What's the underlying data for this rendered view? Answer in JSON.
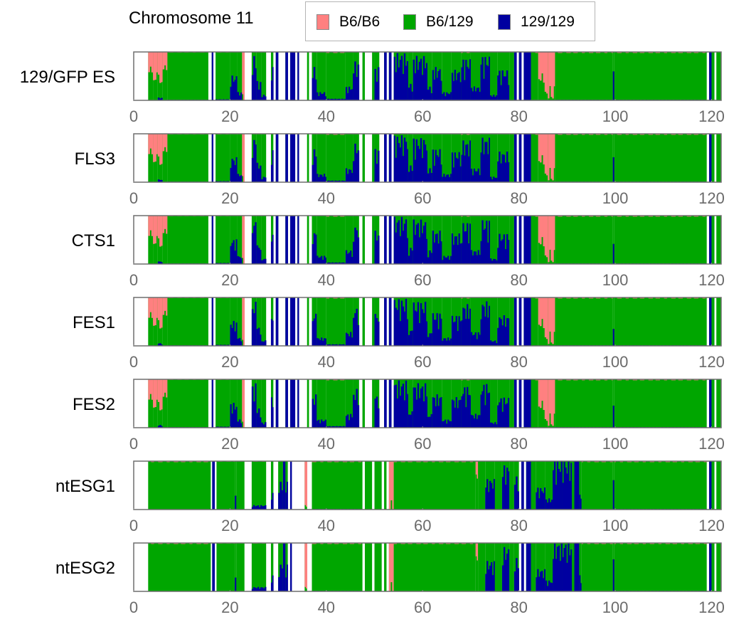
{
  "chart_data": {
    "type": "bar",
    "subtype": "stacked-genotype-frequency-tracks",
    "title": "Chromosome 11",
    "xlabel": "",
    "ylabel": "",
    "xlim": [
      0,
      122
    ],
    "ylim": [
      0,
      1
    ],
    "x_ticks": [
      0,
      20,
      40,
      60,
      80,
      100,
      120
    ],
    "x_tick_labels": [
      "0",
      "20",
      "40",
      "60",
      "80",
      "100",
      "120"
    ],
    "legend": {
      "placement": "top",
      "entries": [
        {
          "label": "B6/B6",
          "color": "#ff8080"
        },
        {
          "label": "B6/129",
          "color": "#00a600"
        },
        {
          "label": "129/129",
          "color": "#0000a0"
        }
      ]
    },
    "samples": [
      "129/GFP ES",
      "FLS3",
      "CTS1",
      "FES1",
      "FES2",
      "ntESG1",
      "ntESG2"
    ],
    "data_start_mb": 3.0,
    "data_end_mb": 122.0,
    "profiles": {
      "es": {
        "description_note": "segments: [start_mb, end_mb, b6b6_frac, b129_frac, gap]",
        "segments": [
          [
            3.0,
            4.0,
            0.4,
            0.0,
            0
          ],
          [
            4.0,
            5.0,
            0.55,
            0.0,
            0
          ],
          [
            5.0,
            6.0,
            0.6,
            0.05,
            0
          ],
          [
            6.0,
            7.0,
            0.35,
            0.0,
            0
          ],
          [
            7.0,
            15.5,
            0.01,
            0.01,
            0
          ],
          [
            15.5,
            16.2,
            0.0,
            0.0,
            1
          ],
          [
            16.2,
            16.5,
            0.0,
            1.0,
            0
          ],
          [
            16.5,
            17.0,
            0.0,
            0.0,
            1
          ],
          [
            17.0,
            20.0,
            0.01,
            0.02,
            0
          ],
          [
            20.0,
            21.5,
            0.0,
            0.45,
            0
          ],
          [
            21.5,
            22.5,
            0.0,
            0.15,
            0
          ],
          [
            22.5,
            23.0,
            1.0,
            0.0,
            0
          ],
          [
            23.0,
            24.5,
            0.0,
            0.0,
            1
          ],
          [
            24.5,
            25.5,
            0.0,
            0.8,
            0
          ],
          [
            25.5,
            26.5,
            0.0,
            0.35,
            0
          ],
          [
            26.5,
            27.5,
            0.0,
            0.1,
            0
          ],
          [
            27.5,
            28.5,
            0.0,
            0.0,
            1
          ],
          [
            28.5,
            29.0,
            0.0,
            0.6,
            0
          ],
          [
            29.0,
            29.5,
            0.0,
            0.0,
            1
          ],
          [
            29.5,
            30.0,
            0.0,
            1.0,
            0
          ],
          [
            30.0,
            31.5,
            0.0,
            0.0,
            1
          ],
          [
            31.5,
            32.0,
            0.0,
            1.0,
            0
          ],
          [
            32.0,
            32.5,
            0.0,
            0.0,
            1
          ],
          [
            32.5,
            33.5,
            0.0,
            1.0,
            0
          ],
          [
            33.5,
            34.0,
            0.0,
            0.0,
            1
          ],
          [
            34.0,
            34.3,
            0.0,
            1.0,
            0
          ],
          [
            34.3,
            36.0,
            0.0,
            0.0,
            1
          ],
          [
            36.0,
            36.4,
            0.0,
            0.0,
            0
          ],
          [
            36.4,
            37.0,
            0.0,
            0.0,
            1
          ],
          [
            37.0,
            38.0,
            0.0,
            0.6,
            0
          ],
          [
            38.0,
            40.0,
            0.0,
            0.15,
            0
          ],
          [
            40.0,
            44.0,
            0.02,
            0.03,
            0
          ],
          [
            44.0,
            45.5,
            0.0,
            0.25,
            0
          ],
          [
            45.5,
            46.8,
            0.0,
            0.7,
            0
          ],
          [
            46.8,
            47.5,
            0.0,
            0.0,
            1
          ],
          [
            47.5,
            48.0,
            0.0,
            0.0,
            0
          ],
          [
            48.0,
            49.5,
            0.0,
            0.0,
            1
          ],
          [
            49.5,
            50.0,
            0.0,
            0.0,
            0
          ],
          [
            50.0,
            51.0,
            0.0,
            0.6,
            0
          ],
          [
            51.0,
            52.0,
            0.0,
            0.0,
            1
          ],
          [
            52.0,
            52.5,
            0.0,
            1.0,
            0
          ],
          [
            52.5,
            53.0,
            0.0,
            0.0,
            1
          ],
          [
            53.0,
            53.5,
            0.0,
            1.0,
            0
          ],
          [
            53.5,
            54.0,
            0.0,
            0.0,
            1
          ],
          [
            54.0,
            57.0,
            0.0,
            0.85,
            0
          ],
          [
            57.0,
            58.0,
            0.0,
            0.3,
            0
          ],
          [
            58.0,
            61.0,
            0.0,
            0.8,
            0
          ],
          [
            61.0,
            62.0,
            0.0,
            0.25,
            0
          ],
          [
            62.0,
            64.0,
            0.0,
            0.6,
            0
          ],
          [
            64.0,
            66.0,
            0.0,
            0.15,
            0
          ],
          [
            66.0,
            68.0,
            0.0,
            0.55,
            0
          ],
          [
            68.0,
            70.0,
            0.02,
            0.75,
            0
          ],
          [
            70.0,
            72.0,
            0.0,
            0.25,
            0
          ],
          [
            72.0,
            74.0,
            0.0,
            0.8,
            0
          ],
          [
            74.0,
            75.5,
            0.0,
            0.1,
            0
          ],
          [
            75.5,
            78.0,
            0.0,
            0.55,
            0
          ],
          [
            78.0,
            79.0,
            0.0,
            0.0,
            0
          ],
          [
            79.0,
            79.5,
            0.0,
            1.0,
            0
          ],
          [
            79.5,
            80.0,
            0.0,
            0.0,
            1
          ],
          [
            80.0,
            80.5,
            0.0,
            1.0,
            0
          ],
          [
            80.5,
            81.0,
            0.0,
            0.0,
            1
          ],
          [
            81.0,
            82.5,
            0.0,
            1.0,
            0
          ],
          [
            82.5,
            84.0,
            0.02,
            0.0,
            0
          ],
          [
            84.0,
            85.0,
            0.55,
            0.0,
            0
          ],
          [
            85.0,
            86.0,
            0.8,
            0.0,
            0
          ],
          [
            86.0,
            87.5,
            0.9,
            0.0,
            0
          ],
          [
            87.5,
            99.5,
            0.02,
            0.01,
            0
          ],
          [
            99.5,
            99.8,
            0.0,
            0.6,
            0
          ],
          [
            99.8,
            119.0,
            0.02,
            0.01,
            0
          ],
          [
            119.0,
            119.5,
            0.0,
            0.0,
            1
          ],
          [
            119.5,
            120.0,
            0.0,
            1.0,
            0
          ],
          [
            120.0,
            120.6,
            0.0,
            0.0,
            0
          ],
          [
            120.6,
            121.0,
            0.0,
            0.0,
            1
          ],
          [
            121.0,
            122.0,
            0.0,
            0.0,
            0
          ]
        ]
      },
      "nt": {
        "segments": [
          [
            3.0,
            16.0,
            0.02,
            0.0,
            0
          ],
          [
            16.0,
            16.3,
            0.0,
            0.0,
            1
          ],
          [
            16.3,
            16.8,
            0.0,
            1.0,
            0
          ],
          [
            16.8,
            17.2,
            0.0,
            0.0,
            1
          ],
          [
            17.2,
            21.0,
            0.01,
            0.0,
            0
          ],
          [
            21.0,
            21.3,
            0.0,
            0.25,
            0
          ],
          [
            21.3,
            23.0,
            0.0,
            0.0,
            0
          ],
          [
            23.0,
            24.5,
            0.0,
            0.0,
            1
          ],
          [
            24.5,
            27.5,
            0.01,
            0.08,
            0
          ],
          [
            27.5,
            28.5,
            0.0,
            0.0,
            1
          ],
          [
            28.5,
            29.0,
            0.0,
            0.3,
            0
          ],
          [
            29.0,
            30.0,
            0.0,
            0.0,
            1
          ],
          [
            30.0,
            31.0,
            0.0,
            0.5,
            0
          ],
          [
            31.0,
            31.5,
            0.0,
            1.0,
            0
          ],
          [
            31.5,
            32.0,
            0.0,
            0.5,
            0
          ],
          [
            32.0,
            32.5,
            0.0,
            0.0,
            1
          ],
          [
            32.5,
            32.8,
            0.0,
            1.0,
            0
          ],
          [
            32.8,
            35.5,
            0.0,
            0.0,
            1
          ],
          [
            35.5,
            36.0,
            1.0,
            0.0,
            0
          ],
          [
            36.0,
            37.0,
            0.0,
            0.0,
            1
          ],
          [
            37.0,
            47.5,
            0.02,
            0.01,
            0
          ],
          [
            47.5,
            48.0,
            0.0,
            0.0,
            1
          ],
          [
            48.0,
            49.5,
            0.0,
            0.0,
            0
          ],
          [
            49.5,
            50.0,
            0.0,
            0.0,
            1
          ],
          [
            50.0,
            51.5,
            0.0,
            0.0,
            0
          ],
          [
            51.5,
            52.0,
            0.0,
            0.0,
            1
          ],
          [
            52.0,
            52.5,
            0.0,
            0.0,
            0
          ],
          [
            52.5,
            53.0,
            0.0,
            0.0,
            1
          ],
          [
            53.0,
            54.0,
            1.0,
            0.0,
            0
          ],
          [
            54.0,
            71.0,
            0.02,
            0.0,
            0
          ],
          [
            71.0,
            71.5,
            0.35,
            0.0,
            0
          ],
          [
            71.5,
            73.0,
            0.0,
            0.0,
            0
          ],
          [
            73.0,
            75.0,
            0.0,
            0.55,
            0
          ],
          [
            75.0,
            76.5,
            0.0,
            0.0,
            0
          ],
          [
            76.5,
            78.0,
            0.0,
            0.8,
            0
          ],
          [
            78.0,
            79.0,
            0.0,
            0.0,
            0
          ],
          [
            79.0,
            80.0,
            0.0,
            0.6,
            0
          ],
          [
            80.0,
            80.5,
            0.0,
            0.0,
            1
          ],
          [
            80.5,
            81.0,
            0.0,
            1.0,
            0
          ],
          [
            81.0,
            81.5,
            0.0,
            0.0,
            1
          ],
          [
            81.5,
            82.5,
            0.0,
            1.0,
            0
          ],
          [
            82.5,
            83.5,
            0.0,
            0.0,
            0
          ],
          [
            83.5,
            85.5,
            0.0,
            0.4,
            0
          ],
          [
            85.5,
            87.0,
            0.0,
            0.2,
            0
          ],
          [
            87.0,
            91.0,
            0.0,
            0.9,
            0
          ],
          [
            91.0,
            91.5,
            0.0,
            0.0,
            0
          ],
          [
            91.5,
            92.5,
            0.0,
            1.0,
            0
          ],
          [
            92.5,
            93.0,
            0.0,
            0.3,
            0
          ],
          [
            93.0,
            99.5,
            0.02,
            0.0,
            0
          ],
          [
            99.5,
            99.8,
            0.0,
            0.6,
            0
          ],
          [
            99.8,
            119.0,
            0.02,
            0.01,
            0
          ],
          [
            119.0,
            119.5,
            0.0,
            0.0,
            1
          ],
          [
            119.5,
            120.0,
            0.0,
            1.0,
            0
          ],
          [
            120.0,
            120.6,
            0.0,
            0.0,
            0
          ],
          [
            120.6,
            121.0,
            0.0,
            0.0,
            1
          ],
          [
            121.0,
            122.0,
            0.0,
            0.0,
            0
          ]
        ]
      }
    },
    "sample_profiles": [
      "es",
      "es",
      "es",
      "es",
      "es",
      "nt",
      "nt"
    ]
  }
}
